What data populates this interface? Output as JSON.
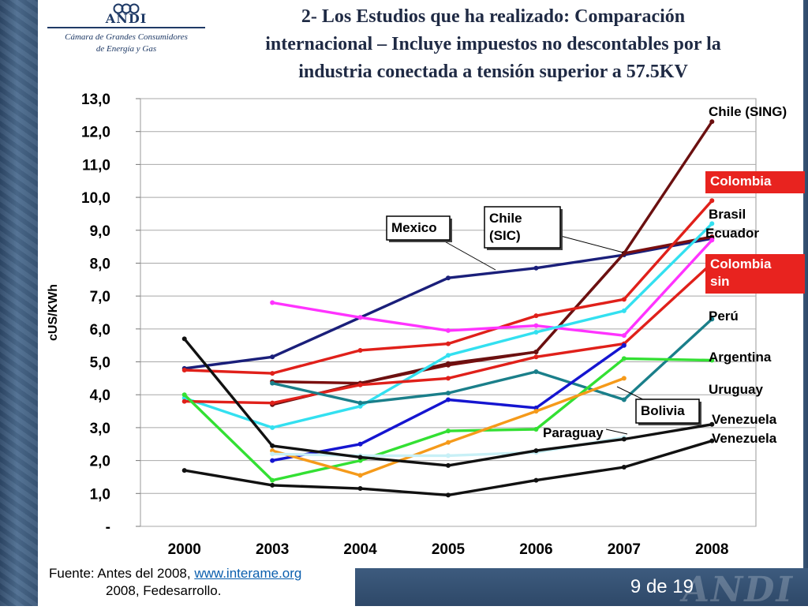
{
  "header": {
    "logo_text": "ANDI",
    "logo_subtitle_1": "Cámara de Grandes Consumidores",
    "logo_subtitle_2": "de Energía y Gas",
    "title_1": "2- Los Estudios que ha realizado: Comparación",
    "title_2": "internacional – Incluye impuestos no descontables por la",
    "title_3": "industria conectada a tensión superior a 57.5KV"
  },
  "footer": {
    "source_prefix": "Fuente: Antes del 2008, ",
    "source_link": "www.interame.org",
    "source_line2": "2008, Fedesarrollo.",
    "slide_number": "9 de 19"
  },
  "colors": {
    "frame": "#2e4868",
    "link": "#0b5fae",
    "label_highlight": "#e8231f"
  },
  "chart_data": {
    "type": "line",
    "ylabel": "cUS/KWh",
    "xlabel": "",
    "categories": [
      "2000",
      "2003",
      "2004",
      "2005",
      "2006",
      "2007",
      "2008"
    ],
    "ylim": [
      0,
      13
    ],
    "yticks": [
      "-",
      "1,0",
      "2,0",
      "3,0",
      "4,0",
      "5,0",
      "6,0",
      "7,0",
      "8,0",
      "9,0",
      "10,0",
      "11,0",
      "12,0",
      "13,0"
    ],
    "grid": true,
    "series": [
      {
        "name": "Mexico",
        "color": "#1a1f7a",
        "values": [
          4.8,
          5.15,
          6.35,
          7.55,
          7.85,
          8.25,
          8.75
        ]
      },
      {
        "name": "Chile (SIC)",
        "color": "#7a0f0f",
        "values": [
          null,
          4.4,
          4.35,
          4.9,
          5.3,
          8.3,
          8.8
        ]
      },
      {
        "name": "Chile (SING)",
        "color": "#6b1010",
        "values": [
          null,
          3.7,
          4.35,
          4.95,
          5.3,
          8.3,
          12.3
        ]
      },
      {
        "name": "Colombia",
        "color": "#e0201a",
        "values": [
          4.75,
          4.65,
          5.35,
          5.55,
          6.4,
          6.9,
          9.9
        ]
      },
      {
        "name": "Brasil",
        "color": "#ff33ff",
        "values": [
          null,
          6.8,
          6.35,
          5.95,
          6.1,
          5.8,
          8.7
        ]
      },
      {
        "name": "Ecuador",
        "color": "#33e0f0",
        "values": [
          3.9,
          3.0,
          3.65,
          5.2,
          5.9,
          6.55,
          9.2
        ]
      },
      {
        "name": "Colombia sin",
        "color": "#e0201a",
        "values": [
          3.8,
          3.75,
          4.3,
          4.5,
          5.15,
          5.55,
          8.0
        ]
      },
      {
        "name": "Perú",
        "color": "#1a7f8a",
        "values": [
          null,
          4.35,
          3.75,
          4.05,
          4.7,
          3.85,
          6.3
        ]
      },
      {
        "name": "Argentina",
        "color": "#33e033",
        "values": [
          4.0,
          1.4,
          2.0,
          2.9,
          2.95,
          5.1,
          5.05
        ]
      },
      {
        "name": "Uruguay",
        "color": "#1515d0",
        "values": [
          null,
          2.0,
          2.5,
          3.85,
          3.6,
          5.5,
          null
        ]
      },
      {
        "name": "Bolivia",
        "color": "#f59a1a",
        "values": [
          null,
          2.3,
          1.55,
          2.55,
          3.5,
          4.5,
          null
        ]
      },
      {
        "name": "Paraguay",
        "color": "#c8f0f6",
        "values": [
          null,
          2.2,
          2.15,
          2.15,
          2.25,
          2.7,
          null
        ]
      },
      {
        "name": "Venezuela",
        "color": "#111111",
        "values": [
          5.7,
          2.45,
          2.1,
          1.85,
          2.3,
          2.65,
          3.1
        ]
      },
      {
        "name": "Venezuela",
        "color": "#111111",
        "values": [
          1.7,
          1.25,
          1.15,
          0.95,
          1.4,
          1.8,
          2.6
        ]
      }
    ],
    "labels": [
      {
        "text": "Chile (SING)",
        "style": "plain",
        "color": "#000000"
      },
      {
        "text": "Colombia",
        "style": "highlight",
        "color": "#ffffff"
      },
      {
        "text": "Brasil",
        "style": "plain",
        "color": "#000000"
      },
      {
        "text": "Ecuador",
        "style": "plain",
        "color": "#000000"
      },
      {
        "text": "Colombia sin",
        "style": "highlight",
        "color": "#ffffff"
      },
      {
        "text": "Perú",
        "style": "plain",
        "color": "#000000"
      },
      {
        "text": "Argentina",
        "style": "plain",
        "color": "#000000"
      },
      {
        "text": "Uruguay",
        "style": "plain",
        "color": "#000000"
      },
      {
        "text": "Venezuela",
        "style": "plain",
        "color": "#000000"
      },
      {
        "text": "Venezuela",
        "style": "plain",
        "color": "#000000"
      },
      {
        "text": "Mexico",
        "style": "callout",
        "color": "#000000"
      },
      {
        "text": "Chile (SIC)",
        "style": "callout",
        "color": "#000000"
      },
      {
        "text": "Bolivia",
        "style": "callout",
        "color": "#000000"
      },
      {
        "text": "Paraguay",
        "style": "plain",
        "color": "#000000"
      }
    ]
  }
}
